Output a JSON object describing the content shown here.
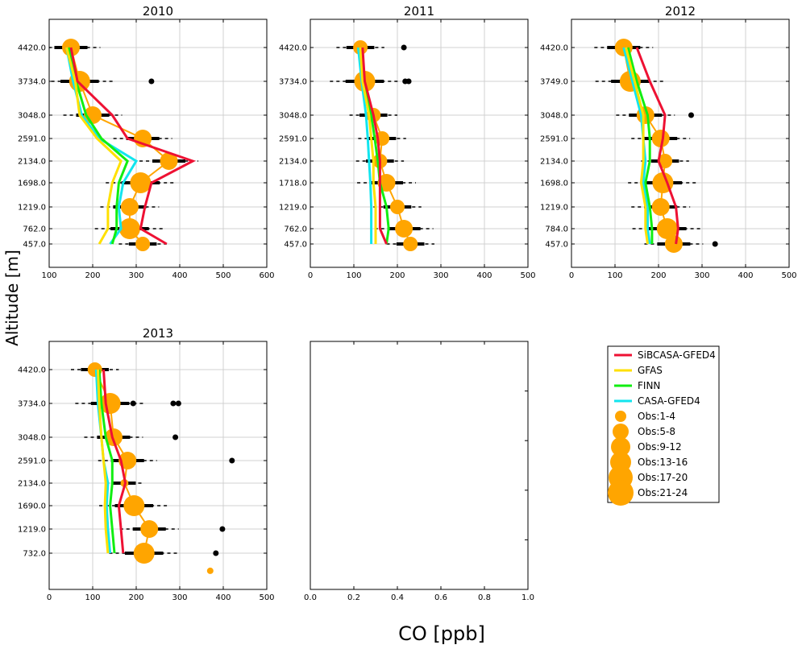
{
  "figure": {
    "ylabel": "Altitude [m]",
    "xlabel": "CO [ppb]"
  },
  "colors": {
    "SiBCASA-GFED4": "#ee1133",
    "GFAS": "#ffe000",
    "FINN": "#11ee11",
    "CASA-GFED4": "#11e5ee",
    "obs": "#ffa500",
    "axis": "#000000",
    "grid": "#d0d0d0"
  },
  "legend": {
    "model_entries": [
      "SiBCASA-GFED4",
      "GFAS",
      "FINN",
      "CASA-GFED4"
    ],
    "obs_entries": [
      "Obs:1-4",
      "Obs:5-8",
      "Obs:9-12",
      "Obs:13-16",
      "Obs:17-20",
      "Obs:21-24"
    ]
  },
  "chart_data": [
    {
      "type": "line",
      "title": "2010",
      "xlim": [
        100,
        600
      ],
      "xticks": [
        100,
        200,
        300,
        400,
        500,
        600
      ],
      "altitudes": [
        "4420.0",
        "3734.0",
        "3048.0",
        "2591.0",
        "2134.0",
        "1698.0",
        "1219.0",
        "762.0",
        "457.0"
      ],
      "series": [
        {
          "name": "SiBCASA-GFED4",
          "values": [
            150,
            165,
            245,
            280,
            430,
            335,
            320,
            310,
            370
          ]
        },
        {
          "name": "GFAS",
          "values": [
            140,
            160,
            170,
            210,
            265,
            245,
            235,
            235,
            215
          ]
        },
        {
          "name": "FINN",
          "values": [
            145,
            162,
            185,
            220,
            280,
            260,
            255,
            255,
            245
          ]
        },
        {
          "name": "CASA-GFED4",
          "values": [
            140,
            155,
            175,
            215,
            300,
            270,
            260,
            265,
            240
          ]
        }
      ],
      "obs": {
        "values": [
          150,
          170,
          200,
          315,
          375,
          310,
          285,
          285,
          315
        ],
        "sizes": [
          3,
          4,
          3,
          3,
          3,
          4,
          3,
          4,
          2
        ]
      },
      "outliers": [
        {
          "x": 335,
          "alt": "3734.0"
        }
      ]
    },
    {
      "type": "line",
      "title": "2011",
      "xlim": [
        0,
        500
      ],
      "xticks": [
        0,
        100,
        200,
        300,
        400,
        500
      ],
      "altitudes": [
        "4420.0",
        "3734.0",
        "3048.0",
        "2591.0",
        "2134.0",
        "1718.0",
        "1219.0",
        "762.0",
        "457.0"
      ],
      "series": [
        {
          "name": "SiBCASA-GFED4",
          "values": [
            120,
            125,
            145,
            155,
            160,
            160,
            160,
            160,
            175
          ]
        },
        {
          "name": "GFAS",
          "values": [
            115,
            120,
            135,
            140,
            145,
            145,
            150,
            150,
            150
          ]
        },
        {
          "name": "FINN",
          "values": [
            115,
            122,
            140,
            148,
            155,
            160,
            175,
            180,
            175
          ]
        },
        {
          "name": "CASA-GFED4",
          "values": [
            110,
            118,
            128,
            132,
            135,
            138,
            140,
            140,
            140
          ]
        }
      ],
      "obs": {
        "values": [
          115,
          125,
          145,
          165,
          160,
          175,
          200,
          215,
          230
        ],
        "sizes": [
          2,
          4,
          2,
          2,
          2,
          3,
          2,
          3,
          2
        ]
      },
      "outliers": [
        {
          "x": 215,
          "alt": "4420.0"
        },
        {
          "x": 218,
          "alt": "3734.0"
        },
        {
          "x": 226,
          "alt": "3734.0"
        }
      ]
    },
    {
      "type": "line",
      "title": "2012",
      "xlim": [
        0,
        500
      ],
      "xticks": [
        0,
        100,
        200,
        300,
        400,
        500
      ],
      "altitudes": [
        "4420.0",
        "3749.0",
        "3048.0",
        "2591.0",
        "2134.0",
        "1698.0",
        "1219.0",
        "784.0",
        "457.0"
      ],
      "series": [
        {
          "name": "SiBCASA-GFED4",
          "values": [
            150,
            180,
            215,
            210,
            200,
            220,
            240,
            245,
            240
          ]
        },
        {
          "name": "GFAS",
          "values": [
            125,
            145,
            165,
            165,
            165,
            160,
            170,
            170,
            175
          ]
        },
        {
          "name": "FINN",
          "values": [
            130,
            150,
            175,
            180,
            180,
            170,
            180,
            185,
            185
          ]
        },
        {
          "name": "CASA-GFED4",
          "values": [
            120,
            140,
            160,
            165,
            170,
            165,
            175,
            175,
            180
          ]
        }
      ],
      "obs": {
        "values": [
          120,
          135,
          170,
          205,
          215,
          210,
          205,
          220,
          235
        ],
        "sizes": [
          3,
          4,
          3,
          3,
          2,
          4,
          3,
          4,
          3
        ]
      },
      "outliers": [
        {
          "x": 275,
          "alt": "3048.0"
        },
        {
          "x": 330,
          "alt": "457.0"
        }
      ]
    },
    {
      "type": "line",
      "title": "2013",
      "xlim": [
        0,
        500
      ],
      "xticks": [
        0,
        100,
        200,
        300,
        400,
        500
      ],
      "altitudes": [
        "4420.0",
        "3734.0",
        "3048.0",
        "2591.0",
        "2134.0",
        "1690.0",
        "1219.0",
        "732.0"
      ],
      "series": [
        {
          "name": "SiBCASA-GFED4",
          "values": [
            125,
            130,
            145,
            165,
            175,
            160,
            165,
            170
          ]
        },
        {
          "name": "GFAS",
          "values": [
            112,
            115,
            120,
            125,
            130,
            128,
            130,
            135
          ]
        },
        {
          "name": "FINN",
          "values": [
            115,
            120,
            130,
            145,
            145,
            140,
            145,
            150
          ]
        },
        {
          "name": "CASA-GFED4",
          "values": [
            108,
            112,
            120,
            125,
            135,
            132,
            135,
            140
          ]
        }
      ],
      "obs": {
        "values": [
          105,
          140,
          148,
          180,
          173,
          195,
          230,
          218
        ],
        "sizes": [
          2,
          4,
          3,
          3,
          1,
          4,
          3,
          4
        ]
      },
      "outliers": [
        {
          "x": 193,
          "alt": "3734.0"
        },
        {
          "x": 285,
          "alt": "3734.0"
        },
        {
          "x": 297,
          "alt": "3734.0"
        },
        {
          "x": 290,
          "alt": "3048.0"
        },
        {
          "x": 420,
          "alt": "2591.0"
        },
        {
          "x": 398,
          "alt": "1219.0"
        },
        {
          "x": 383,
          "alt": "732.0"
        }
      ],
      "stray_obs": [
        {
          "x": 370,
          "yfrac": 0.925
        }
      ]
    },
    {
      "type": "line",
      "title": "",
      "empty": true,
      "xlim": [
        0,
        1
      ],
      "xticks": [
        "0.0",
        "0.2",
        "0.4",
        "0.6",
        "0.8",
        "1.0"
      ]
    }
  ]
}
